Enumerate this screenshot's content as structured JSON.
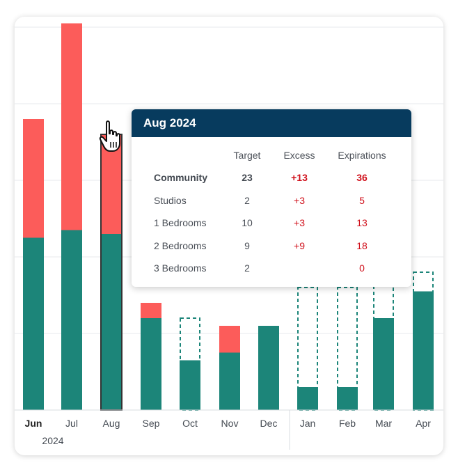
{
  "chart_data": {
    "type": "bar",
    "categories": [
      "Jun",
      "Jul",
      "Aug",
      "Sep",
      "Oct",
      "Nov",
      "Dec",
      "Jan",
      "Feb",
      "Mar",
      "Apr"
    ],
    "year_label": "2024",
    "ylim": [
      0,
      50
    ],
    "grid": true,
    "series": [
      {
        "key": "target",
        "values": [
          22.5,
          23.5,
          23,
          12,
          6.5,
          7.5,
          11,
          3,
          3,
          12,
          15.5
        ]
      },
      {
        "key": "excess",
        "values": [
          15.5,
          27,
          13,
          2,
          0,
          3.5,
          0,
          0,
          0,
          0,
          0
        ]
      },
      {
        "key": "expected_outline",
        "values": [
          null,
          null,
          null,
          null,
          12,
          null,
          null,
          16,
          16,
          20,
          18
        ]
      }
    ],
    "highlighted_category": "Aug",
    "colors": {
      "target": "#1c8579",
      "excess": "#fc5c5a",
      "outline": "#1c8579",
      "grid": "#e7e9ec",
      "highlight_border": "#333333"
    }
  },
  "tooltip": {
    "title": "Aug 2024",
    "columns": [
      "Target",
      "Excess",
      "Expirations"
    ],
    "rows": [
      {
        "name": "Community",
        "target": "23",
        "excess": "+13",
        "expirations": "36",
        "bold": true
      },
      {
        "name": "Studios",
        "target": "2",
        "excess": "+3",
        "expirations": "5"
      },
      {
        "name": "1 Bedrooms",
        "target": "10",
        "excess": "+3",
        "expirations": "13"
      },
      {
        "name": "2 Bedrooms",
        "target": "9",
        "excess": "+9",
        "expirations": "18"
      },
      {
        "name": "3 Bedrooms",
        "target": "2",
        "excess": "",
        "expirations": "0"
      }
    ]
  },
  "cursor_icon": "hand-pointer-icon"
}
